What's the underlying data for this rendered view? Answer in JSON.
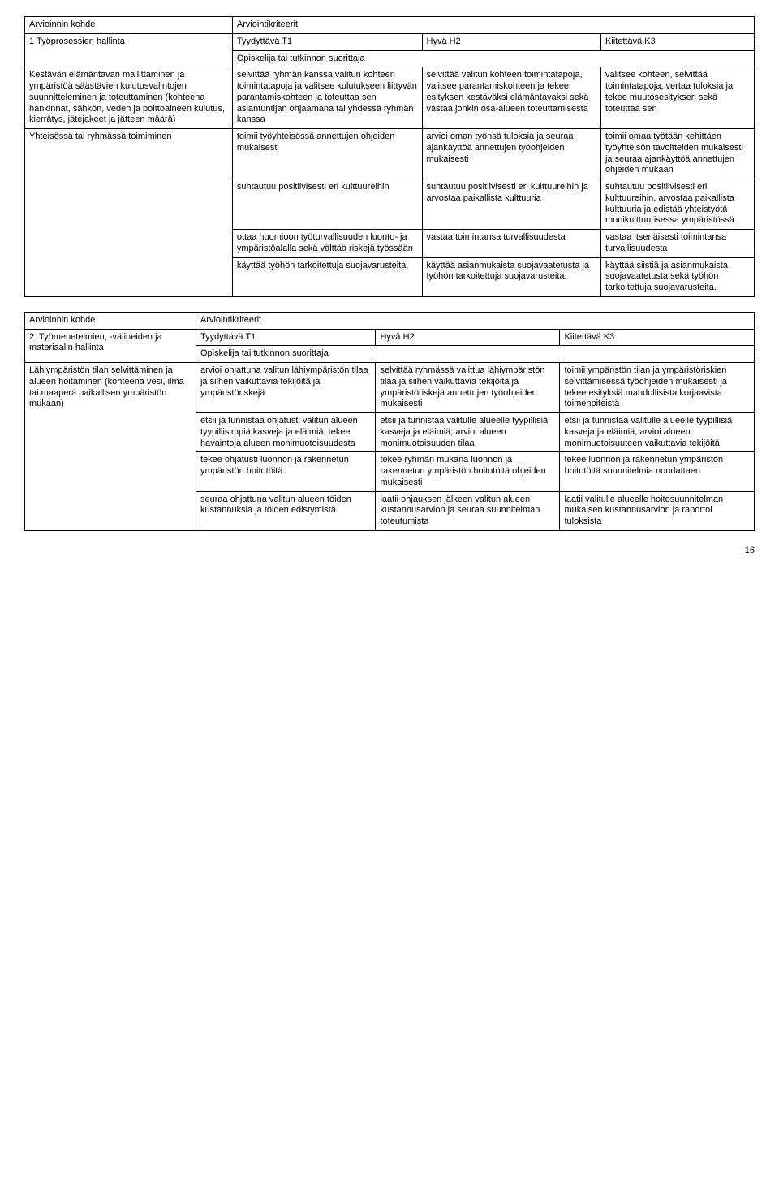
{
  "table1": {
    "header_left": "Arvioinnin kohde",
    "header_right": "Arviointikriteerit",
    "row1_left": "1 Työprosessien hallinta",
    "t1": "Tyydyttävä T1",
    "h2": "Hyvä H2",
    "k3": "Kiitettävä K3",
    "opiskelija": "Opiskelija tai tutkinnon suorittaja",
    "r2_left": "Kestävän elämäntavan mallittaminen ja ympäristöä säästävien kulutusvalintojen suunnitteleminen ja toteuttaminen (kohteena hankinnat, sähkön, veden ja polttoaineen kulutus, kierrätys, jätejakeet ja jätteen määrä)",
    "r2_c1": "selvittää ryhmän kanssa valitun kohteen toimintatapoja ja valitsee kulutukseen liittyvän parantamiskohteen ja toteuttaa sen asiantuntijan ohjaamana tai yhdessä ryhmän kanssa",
    "r2_c2": "selvittää valitun kohteen toimintatapoja, valitsee parantamiskohteen ja tekee esityksen kestäväksi elämäntavaksi sekä vastaa jonkin osa-alueen toteuttamisesta",
    "r2_c3": "valitsee kohteen, selvittää toimintatapoja, vertaa tuloksia ja tekee muutosesityksen sekä toteuttaa sen",
    "r3_left": "Yhteisössä tai ryhmässä toimiminen",
    "r3a_c1": "toimii työyhteisössä annettujen ohjeiden mukaisesti",
    "r3a_c2": "arvioi oman työnsä tuloksia ja seuraa ajankäyttöä annettujen työohjeiden mukaisesti",
    "r3a_c3": "toimii omaa työtään kehittäen työyhteisön tavoitteiden mukaisesti ja seuraa ajankäyttöä annettujen ohjeiden mukaan",
    "r3b_c1": "suhtautuu positiivisesti eri kulttuureihin",
    "r3b_c2": "suhtautuu positiivisesti eri kulttuureihin ja arvostaa paikallista kulttuuria",
    "r3b_c3": "suhtautuu positiivisesti eri kulttuureihin, arvostaa paikallista kulttuuria ja edistää yhteistyötä monikulttuurisessa ympäristössä",
    "r3c_c1": "ottaa huomioon työturvallisuuden luonto- ja ympäristöalalla sekä välttää riskejä työssään",
    "r3c_c2": "vastaa toimintansa turvallisuudesta",
    "r3c_c3": "vastaa itsenäisesti toimintansa turvallisuudesta",
    "r3d_c1": "käyttää työhön tarkoitettuja suojavarusteita.",
    "r3d_c2": "käyttää asianmukaista suojavaatetusta ja työhön tarkoitettuja suojavarusteita.",
    "r3d_c3": "käyttää siistiä ja asianmukaista suojavaatetusta sekä työhön tarkoitettuja suojavarusteita."
  },
  "table2": {
    "header_left": "Arvioinnin kohde",
    "header_right": "Arviointikriteerit",
    "row1_left": "2. Työmenetelmien, -välineiden ja materiaalin hallinta",
    "t1": "Tyydyttävä T1",
    "h2": "Hyvä H2",
    "k3": "Kiitettävä K3",
    "opiskelija": "Opiskelija tai tutkinnon suorittaja",
    "r2_left": "Lähiympäristön tilan selvittäminen ja alueen hoitaminen (kohteena vesi, ilma tai maaperä paikallisen ympäristön mukaan)",
    "r2a_c1": "arvioi ohjattuna valitun lähiympäristön tilaa ja siihen vaikuttavia tekijöitä ja ympäristöriskejä",
    "r2a_c2": "selvittää ryhmässä valittua lähiympäristön tilaa ja siihen vaikuttavia tekijöitä ja ympäristöriskejä annettujen työohjeiden mukaisesti",
    "r2a_c3": "toimii ympäristön tilan ja ympäristöriskien selvittämisessä työohjeiden mukaisesti ja tekee esityksiä mahdollisista korjaavista toimenpiteistä",
    "r2b_c1": "etsii ja tunnistaa ohjatusti valitun alueen tyypillisimpiä kasveja ja eläimiä, tekee havaintoja alueen monimuotoisuudesta",
    "r2b_c2": "etsii ja tunnistaa valitulle alueelle tyypillisiä kasveja ja eläimiä, arvioi alueen monimuotoisuuden tilaa",
    "r2b_c3": "etsii ja tunnistaa valitulle alueelle tyypillisiä kasveja ja eläimiä, arvioi alueen monimuotoisuuteen vaikuttavia tekijöitä",
    "r2c_c1": "tekee ohjatusti luonnon ja rakennetun ympäristön hoitotöitä",
    "r2c_c2": "tekee ryhmän mukana luonnon ja rakennetun ympäristön hoitotöitä ohjeiden mukaisesti",
    "r2c_c3": "tekee luonnon ja rakennetun ympäristön hoitotöitä suunnitelmia noudattaen",
    "r2d_c1": "seuraa ohjattuna valitun alueen töiden kustannuksia ja töiden edistymistä",
    "r2d_c2": "laatii ohjauksen jälkeen valitun alueen kustannusarvion ja seuraa suunnitelman toteutumista",
    "r2d_c3": "laatii valitulle alueelle hoitosuunnitelman mukaisen kustannusarvion ja raportoi tuloksista"
  },
  "page_number": "16"
}
